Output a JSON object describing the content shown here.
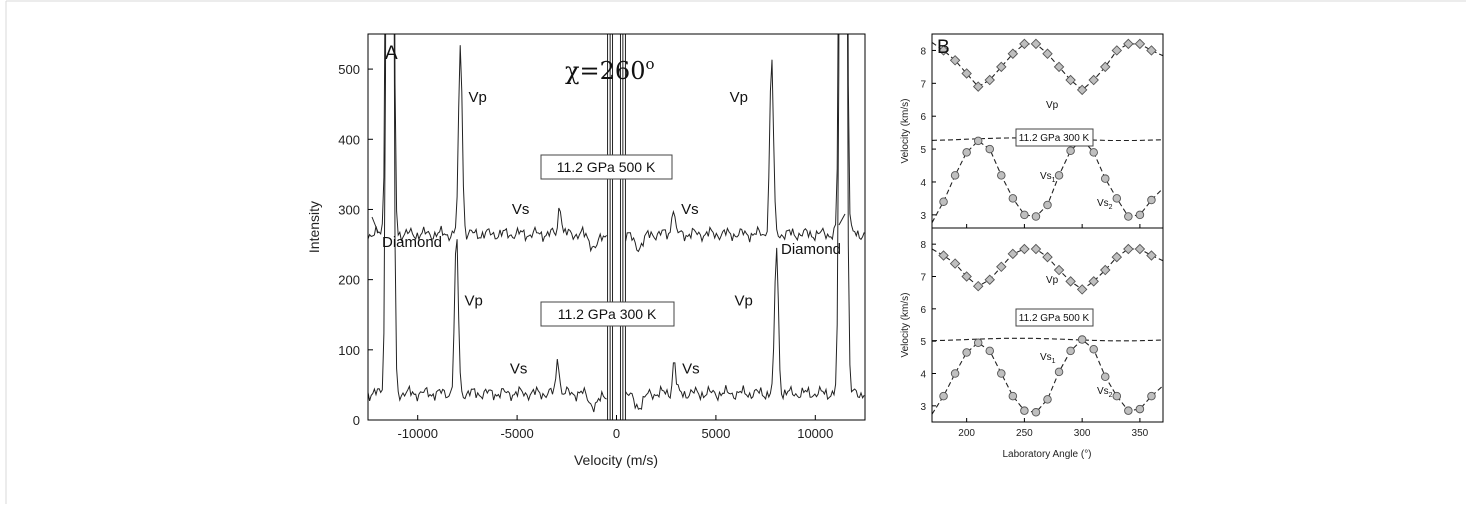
{
  "chart_data": [
    {
      "panel": "A",
      "type": "line",
      "xlabel": "Velocity (m/s)",
      "ylabel": "Intensity",
      "xlim": [
        -12500,
        12500
      ],
      "ylim": [
        0,
        550
      ],
      "xticks": [
        -10000,
        -5000,
        0,
        5000,
        10000
      ],
      "yticks": [
        0,
        100,
        200,
        300,
        400,
        500
      ],
      "angle_label": "χ=260",
      "angle_sup": "o",
      "series": [
        {
          "label": "11.2 GPa 500 K",
          "baseline": 265,
          "peaks": [
            {
              "x": -7850,
              "y": 540,
              "label": "Vp"
            },
            {
              "x": -2850,
              "y": 310,
              "label": "Vs"
            },
            {
              "x": 2850,
              "y": 305,
              "label": "Vs"
            },
            {
              "x": 7800,
              "y": 515,
              "label": "Vp"
            }
          ],
          "diamond_x": [
            -11300,
            11300
          ]
        },
        {
          "label": "11.2 GPa 300 K",
          "baseline": 38,
          "peaks": [
            {
              "x": -8050,
              "y": 262,
              "label": "Vp"
            },
            {
              "x": -2950,
              "y": 92,
              "label": "Vs"
            },
            {
              "x": 2900,
              "y": 87,
              "label": "Vs"
            },
            {
              "x": 8050,
              "y": 248,
              "label": "Vp"
            }
          ],
          "diamond_x": [
            -11300,
            11300
          ]
        }
      ],
      "annotations": [
        "Diamond",
        "Diamond"
      ]
    },
    {
      "panel": "B",
      "type": "scatter",
      "xlabel": "Laboratory Angle (°)",
      "ylabel": "Velocity (km/s)",
      "xlim": [
        170,
        370
      ],
      "xticks": [
        200,
        250,
        300,
        350
      ],
      "subplots": [
        {
          "condition": "11.2 GPa 300 K",
          "ylim": [
            2.6,
            8.5
          ],
          "yticks": [
            3,
            4,
            5,
            6,
            7,
            8
          ],
          "vp": {
            "label": "Vp",
            "x": [
              180,
              190,
              200,
              210,
              220,
              230,
              240,
              250,
              260,
              270,
              280,
              290,
              300,
              310,
              320,
              330,
              340,
              350,
              360
            ],
            "y": [
              8.0,
              7.7,
              7.3,
              6.9,
              7.1,
              7.5,
              7.9,
              8.2,
              8.2,
              7.9,
              7.5,
              7.1,
              6.8,
              7.1,
              7.5,
              8.0,
              8.2,
              8.2,
              8.0
            ]
          },
          "vs1": {
            "label": "Vs",
            "sub": "1",
            "level": 5.3
          },
          "vs2": {
            "label": "Vs",
            "sub": "2",
            "x": [
              180,
              190,
              200,
              210,
              220,
              230,
              240,
              250,
              260,
              270,
              280,
              290,
              300,
              310,
              320,
              330,
              340,
              350,
              360
            ],
            "y": [
              3.4,
              4.2,
              4.9,
              5.25,
              5.0,
              4.2,
              3.5,
              3.0,
              2.95,
              3.3,
              4.2,
              4.95,
              5.3,
              4.9,
              4.1,
              3.5,
              2.95,
              3.0,
              3.45
            ]
          }
        },
        {
          "condition": "11.2 GPa 500 K",
          "ylim": [
            2.5,
            8.5
          ],
          "yticks": [
            3,
            4,
            5,
            6,
            7,
            8
          ],
          "vp": {
            "label": "Vp",
            "x": [
              180,
              190,
              200,
              210,
              220,
              230,
              240,
              250,
              260,
              270,
              280,
              290,
              300,
              310,
              320,
              330,
              340,
              350,
              360
            ],
            "y": [
              7.65,
              7.4,
              7.0,
              6.7,
              6.9,
              7.3,
              7.7,
              7.85,
              7.85,
              7.6,
              7.2,
              6.85,
              6.6,
              6.85,
              7.2,
              7.6,
              7.85,
              7.85,
              7.65
            ]
          },
          "vs1": {
            "label": "Vs",
            "sub": "1",
            "level": 5.05
          },
          "vs2": {
            "label": "Vs",
            "sub": "2",
            "x": [
              180,
              190,
              200,
              210,
              220,
              230,
              240,
              250,
              260,
              270,
              280,
              290,
              300,
              310,
              320,
              330,
              340,
              350,
              360
            ],
            "y": [
              3.3,
              4.0,
              4.65,
              4.95,
              4.7,
              4.0,
              3.3,
              2.85,
              2.8,
              3.2,
              4.05,
              4.7,
              5.05,
              4.75,
              3.9,
              3.3,
              2.85,
              2.9,
              3.3
            ]
          }
        }
      ]
    }
  ]
}
